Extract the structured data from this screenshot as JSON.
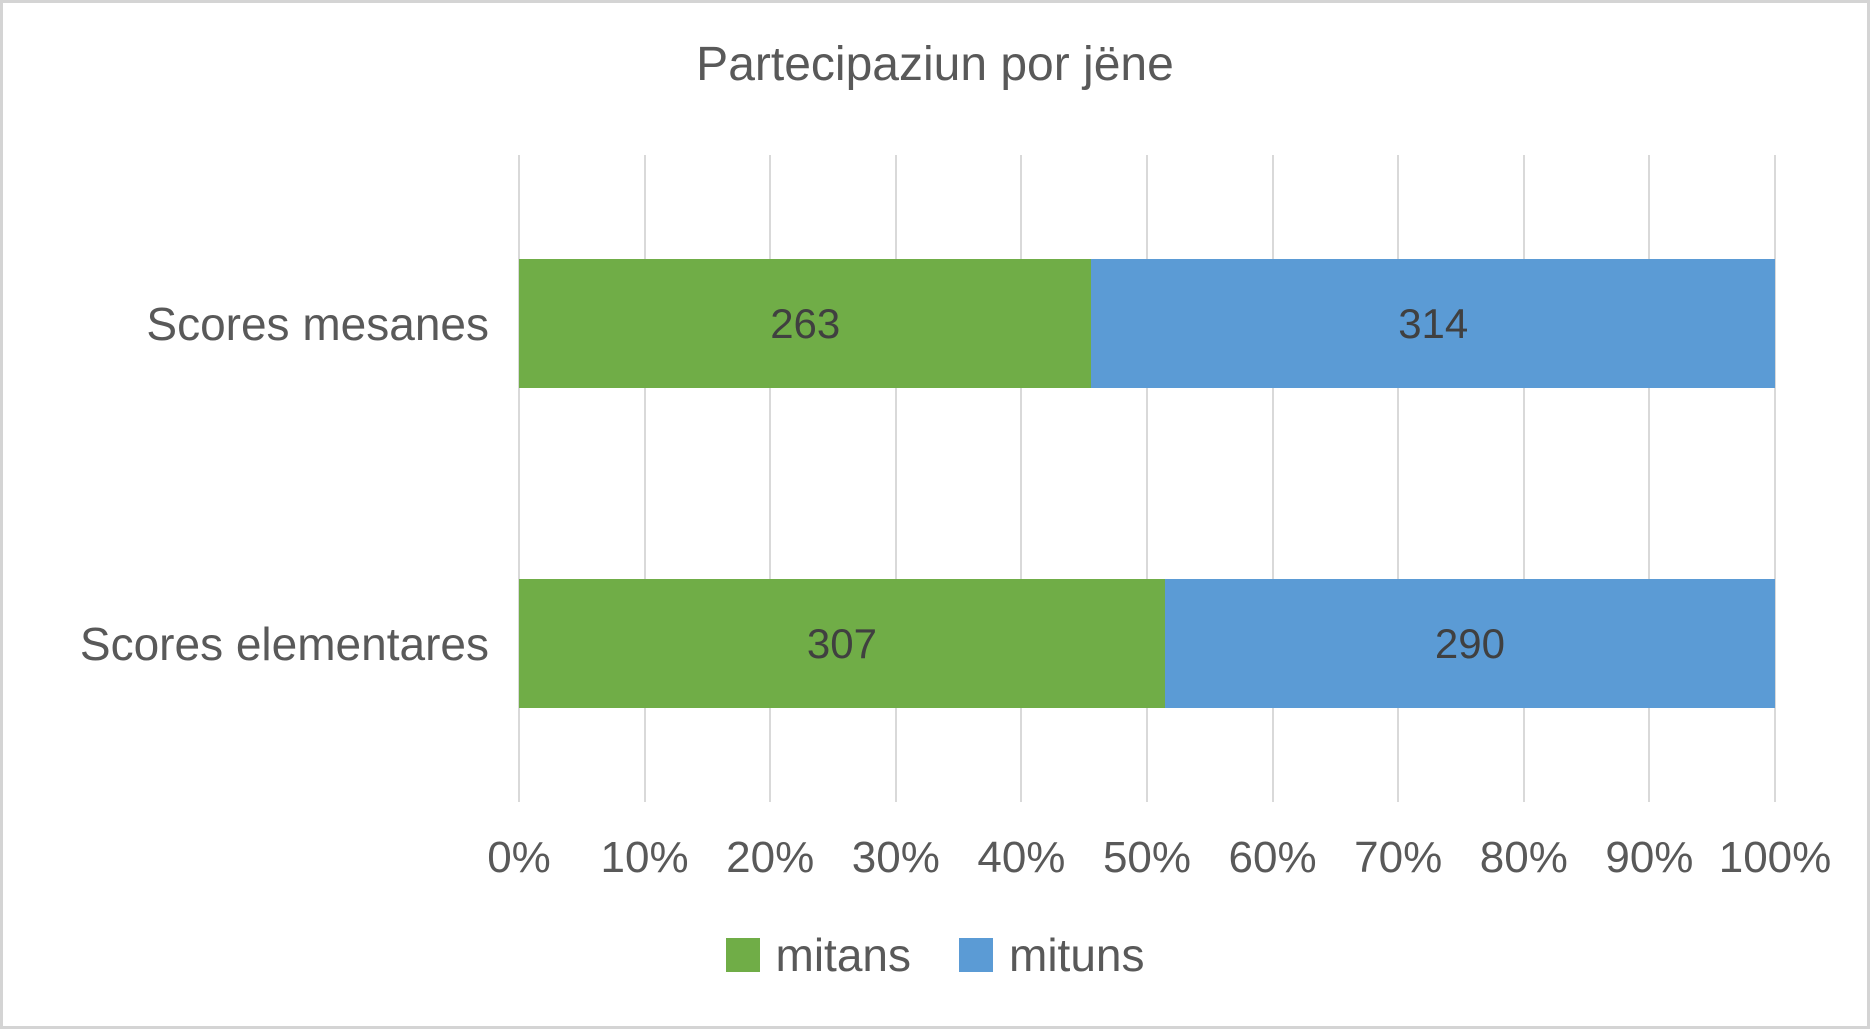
{
  "chart_data": {
    "type": "bar",
    "orientation": "horizontal",
    "stacked": "percent",
    "title": "Partecipaziun por jëne",
    "categories": [
      "Scores mesanes",
      "Scores elementares"
    ],
    "series": [
      {
        "name": "mitans",
        "color": "#70AD47",
        "values": [
          263,
          307
        ]
      },
      {
        "name": "mituns",
        "color": "#5B9BD5",
        "values": [
          314,
          290
        ]
      }
    ],
    "x_axis": {
      "min": "0%",
      "max": "100%",
      "ticks": [
        "0%",
        "10%",
        "20%",
        "30%",
        "40%",
        "50%",
        "60%",
        "70%",
        "80%",
        "90%",
        "100%"
      ]
    },
    "legend_position": "bottom",
    "gridlines": true,
    "colors": {
      "background": "#FFFFFF",
      "frame_border": "#D4D4D4",
      "gridline": "#D9D9D9",
      "title_text": "#595959",
      "axis_text": "#595959",
      "category_text": "#595959",
      "data_label_text": "#404040"
    }
  }
}
